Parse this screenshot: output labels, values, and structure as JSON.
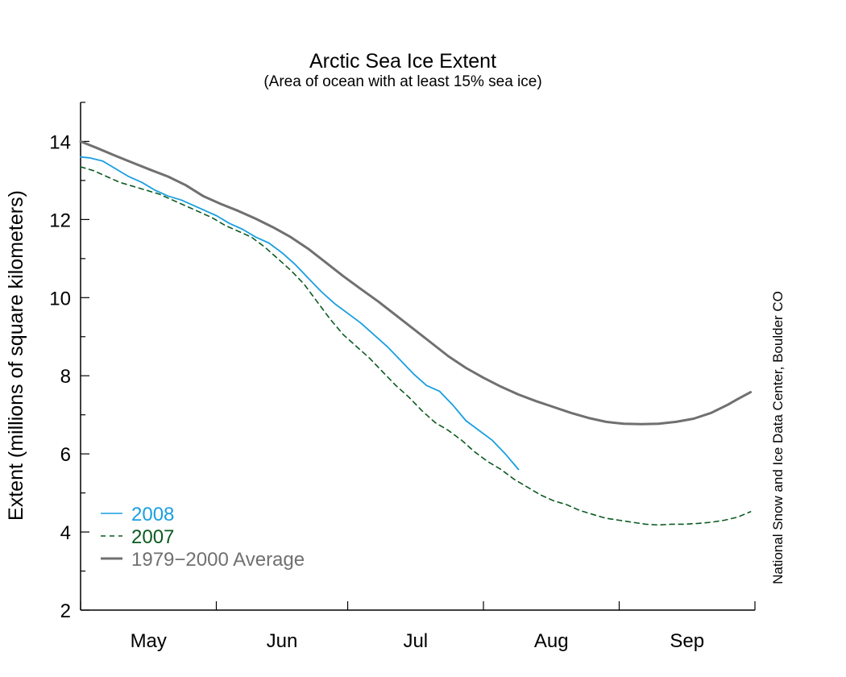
{
  "chart_data": {
    "type": "line",
    "title": "Arctic Sea Ice Extent",
    "subtitle": "(Area of ocean with at least 15% sea ice)",
    "ylabel": "Extent (millions of square kilometers)",
    "ylim": [
      2,
      15
    ],
    "yticks": [
      2,
      4,
      6,
      8,
      10,
      12,
      14
    ],
    "xlim": [
      0,
      154
    ],
    "x_categories": [
      "May",
      "Jun",
      "Jul",
      "Aug",
      "Sep"
    ],
    "x_boundaries": [
      0,
      31,
      61,
      92,
      123,
      154
    ],
    "credit": "National Snow and Ice Data Center, Boulder CO",
    "legend_position": "bottom-left",
    "series": [
      {
        "name": "2008",
        "color": "#1a9fe0",
        "style": "solid",
        "x": [
          0,
          2,
          5,
          8,
          11,
          14,
          17,
          20,
          23,
          26,
          29,
          31,
          34,
          37,
          40,
          43,
          46,
          49,
          52,
          55,
          58,
          61,
          64,
          67,
          70,
          73,
          76,
          79,
          82,
          85,
          88,
          91,
          94,
          97,
          100
        ],
        "y": [
          13.6,
          13.58,
          13.5,
          13.3,
          13.1,
          12.95,
          12.75,
          12.6,
          12.5,
          12.35,
          12.2,
          12.1,
          11.9,
          11.75,
          11.55,
          11.4,
          11.15,
          10.85,
          10.5,
          10.15,
          9.85,
          9.6,
          9.35,
          9.05,
          8.75,
          8.4,
          8.05,
          7.75,
          7.6,
          7.25,
          6.85,
          6.6,
          6.35,
          6.0,
          5.6
        ]
      },
      {
        "name": "2007",
        "color": "#0b5a20",
        "style": "dashed",
        "x": [
          0,
          3,
          6,
          9,
          12,
          15,
          18,
          21,
          24,
          27,
          30,
          33,
          36,
          39,
          42,
          45,
          48,
          51,
          54,
          57,
          60,
          63,
          66,
          69,
          72,
          75,
          78,
          81,
          84,
          87,
          90,
          93,
          96,
          99,
          102,
          105,
          108,
          111,
          114,
          117,
          120,
          123,
          126,
          129,
          132,
          135,
          138,
          141,
          144,
          147,
          150,
          153
        ],
        "y": [
          13.35,
          13.25,
          13.1,
          12.95,
          12.85,
          12.75,
          12.65,
          12.5,
          12.35,
          12.2,
          12.05,
          11.85,
          11.7,
          11.55,
          11.3,
          11.0,
          10.7,
          10.35,
          9.9,
          9.45,
          9.05,
          8.75,
          8.45,
          8.1,
          7.75,
          7.45,
          7.1,
          6.8,
          6.6,
          6.35,
          6.05,
          5.8,
          5.6,
          5.35,
          5.15,
          4.95,
          4.8,
          4.7,
          4.55,
          4.45,
          4.35,
          4.3,
          4.25,
          4.2,
          4.18,
          4.2,
          4.2,
          4.22,
          4.25,
          4.3,
          4.38,
          4.52
        ]
      },
      {
        "name": "1979−2000 Average",
        "color": "#707070",
        "style": "solid",
        "x": [
          0,
          4,
          8,
          12,
          16,
          20,
          24,
          28,
          32,
          36,
          40,
          44,
          48,
          52,
          56,
          60,
          64,
          68,
          72,
          76,
          80,
          84,
          88,
          92,
          96,
          100,
          104,
          108,
          112,
          116,
          120,
          124,
          128,
          132,
          136,
          140,
          144,
          148,
          150,
          153
        ],
        "y": [
          14.0,
          13.82,
          13.63,
          13.45,
          13.27,
          13.1,
          12.88,
          12.6,
          12.4,
          12.22,
          12.02,
          11.8,
          11.55,
          11.25,
          10.9,
          10.55,
          10.22,
          9.9,
          9.55,
          9.2,
          8.85,
          8.5,
          8.2,
          7.95,
          7.72,
          7.52,
          7.35,
          7.2,
          7.05,
          6.92,
          6.82,
          6.77,
          6.76,
          6.77,
          6.82,
          6.9,
          7.05,
          7.27,
          7.4,
          7.58
        ]
      }
    ]
  }
}
